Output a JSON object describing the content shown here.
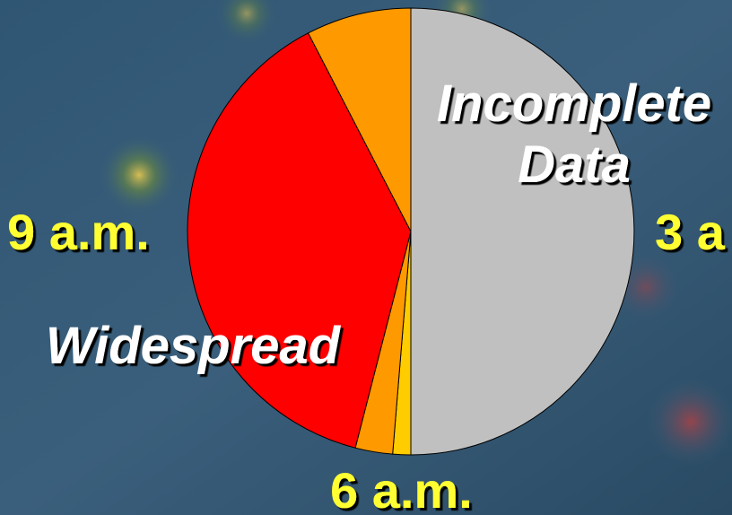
{
  "chart_data": {
    "type": "pie",
    "values": [
      50,
      1.3,
      2.7,
      38.4,
      7.6
    ],
    "colors": [
      "#c0c0c0",
      "#ffcc00",
      "#ff9900",
      "#ff0000",
      "#ff9900"
    ],
    "start_angle": 0,
    "direction": "clockwise",
    "annotations": [
      "Incomplete Data",
      "Widespread",
      "9 a.m.",
      "3 a",
      "6 a.m."
    ]
  }
}
